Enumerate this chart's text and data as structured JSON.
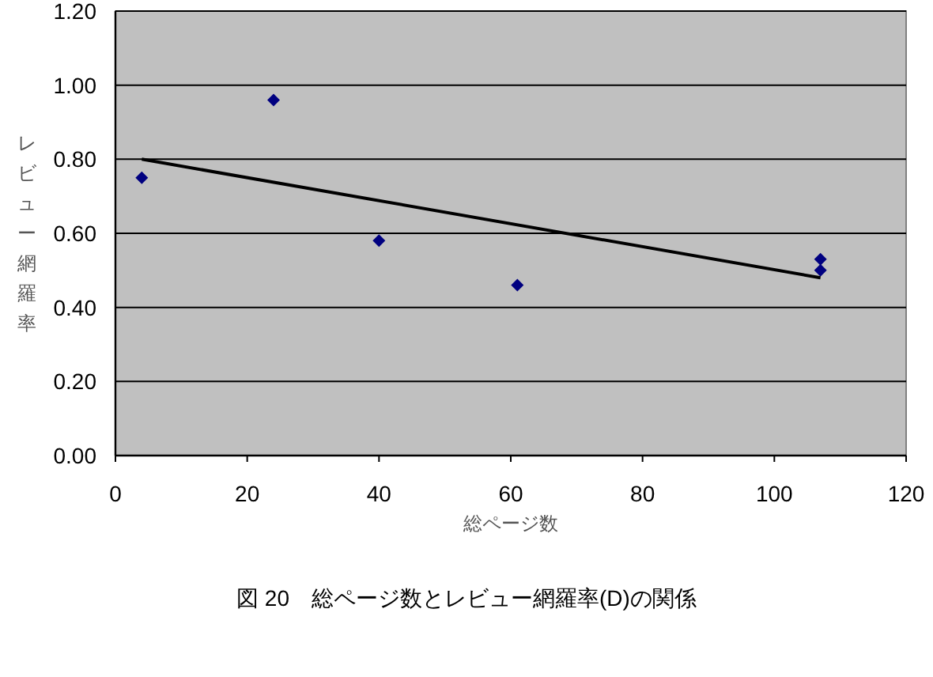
{
  "chart_data": {
    "type": "scatter",
    "xlabel": "総ページ数",
    "ylabel": "レビュー網羅率",
    "annotations": [
      "図 20　総ページ数とレビュー網羅率(D)の関係"
    ],
    "series": [
      {
        "color": "#000080",
        "marker": "diamond",
        "x": [
          4,
          24,
          40,
          61,
          107,
          107
        ],
        "values": [
          0.75,
          0.96,
          0.58,
          0.46,
          0.53,
          0.5
        ]
      },
      {
        "type": "line",
        "color": "#000000",
        "marker": "none",
        "x": [
          4,
          107
        ],
        "values": [
          0.8,
          0.48
        ]
      }
    ],
    "xlim": [
      0,
      120
    ],
    "xticks": [
      0,
      20,
      40,
      60,
      80,
      100,
      120
    ],
    "ylim": [
      0,
      1.2
    ],
    "yticks": [
      {
        "value": 0,
        "label": "0.00"
      },
      {
        "value": 0.2,
        "label": "0.20"
      },
      {
        "value": 0.4,
        "label": "0.40"
      },
      {
        "value": 0.6,
        "label": "0.60"
      },
      {
        "value": 0.8,
        "label": "0.80"
      },
      {
        "value": 1.0,
        "label": "1.00"
      },
      {
        "value": 1.2,
        "label": "1.20"
      }
    ],
    "grid": "y"
  }
}
